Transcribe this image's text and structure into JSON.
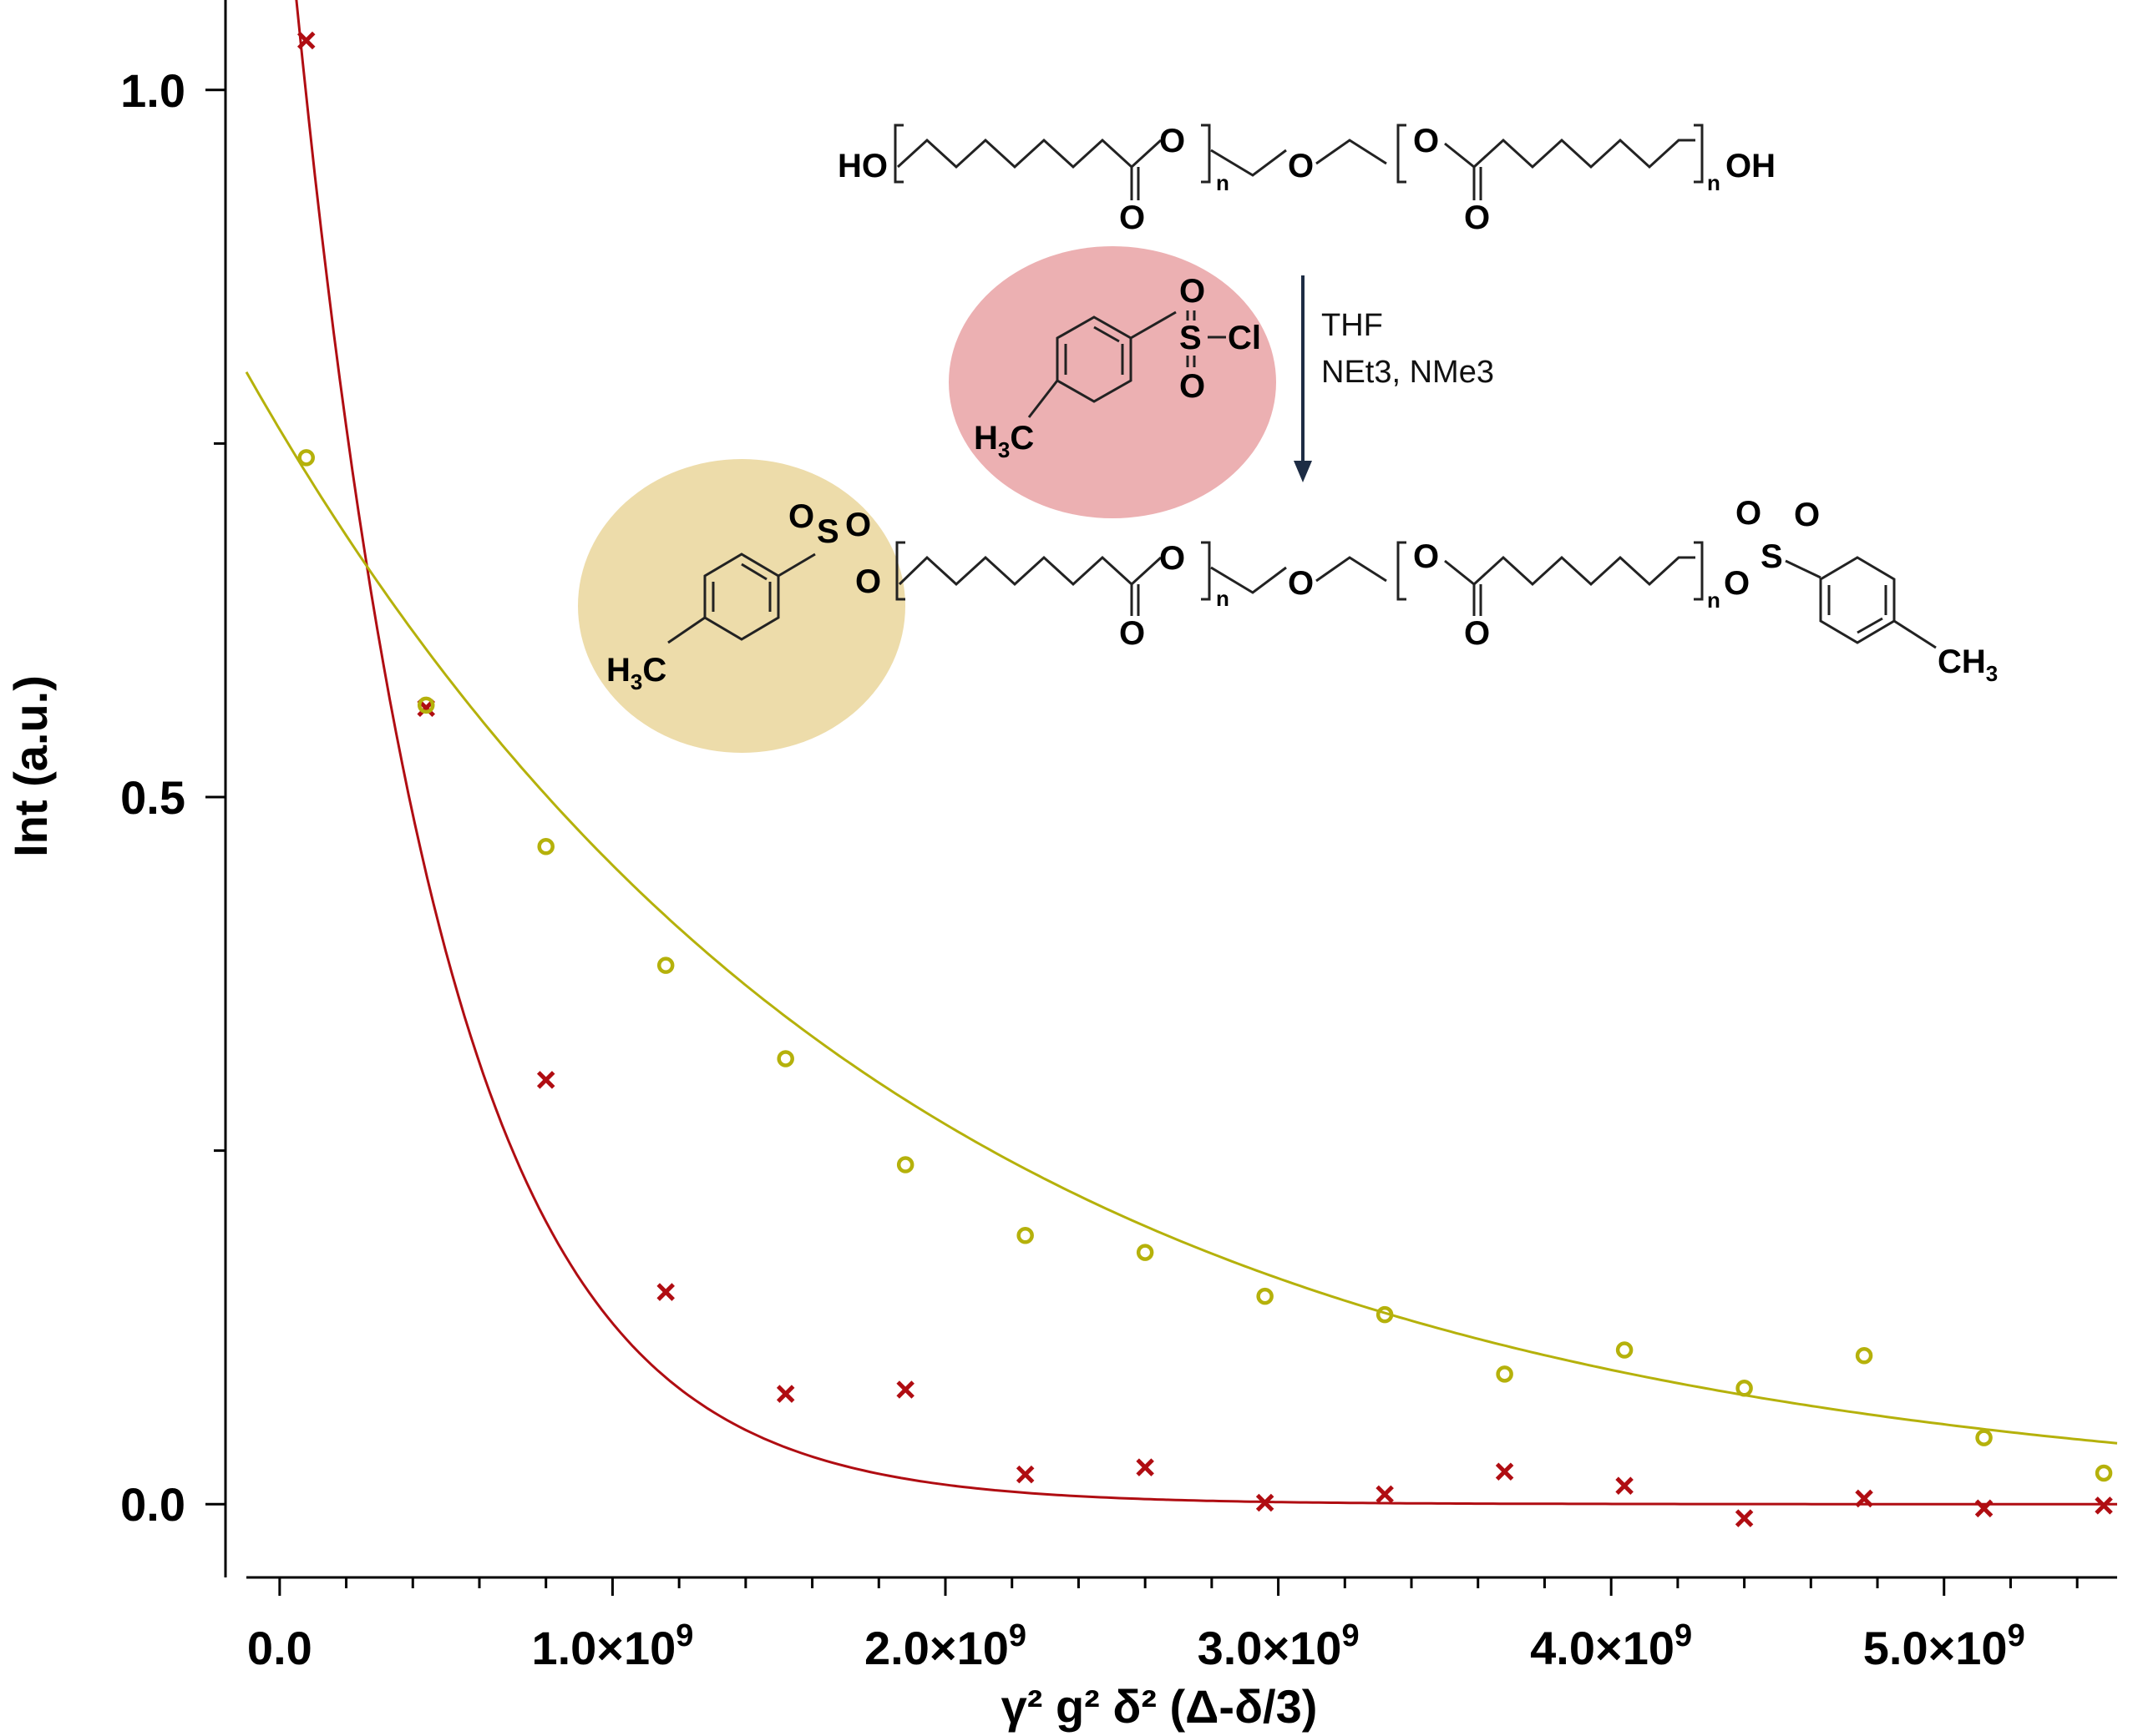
{
  "chart_data": {
    "type": "scatter",
    "xlabel": "γ² g² δ² (Δ-δ/3)",
    "ylabel": "Int (a.u.)",
    "xlim": [
      -100000000.0,
      5520000000.0
    ],
    "ylim": [
      -0.04,
      1.04
    ],
    "x_ticks": [
      {
        "value": 0,
        "label": "0.0",
        "exp": ""
      },
      {
        "value": 1000000000,
        "label": "1.0×10",
        "exp": "9"
      },
      {
        "value": 2000000000,
        "label": "2.0×10",
        "exp": "9"
      },
      {
        "value": 3000000000,
        "label": "3.0×10",
        "exp": "9"
      },
      {
        "value": 4000000000,
        "label": "4.0×10",
        "exp": "9"
      },
      {
        "value": 5000000000,
        "label": "5.0×10",
        "exp": "9"
      }
    ],
    "y_ticks": [
      {
        "value": 0,
        "label": "0.0"
      },
      {
        "value": 0.5,
        "label": "0.5"
      },
      {
        "value": 1.0,
        "label": "1.0"
      }
    ],
    "series": [
      {
        "marker": "x",
        "color": "#b00d12",
        "x": [
          80000000.0,
          440000000.0,
          800000000.0,
          1160000000.0,
          1520000000.0,
          1880000000.0,
          2240000000.0,
          2600000000.0,
          2960000000.0,
          3320000000.0,
          3680000000.0,
          4040000000.0,
          4400000000.0,
          4760000000.0,
          5120000000.0,
          5480000000.0
        ],
        "y": [
          1.035,
          0.563,
          0.3,
          0.15,
          0.078,
          0.081,
          0.021,
          0.026,
          0.001,
          0.007,
          0.023,
          0.013,
          -0.01,
          0.004,
          -0.003,
          -0.001
        ],
        "fit": {
          "model": "exponential",
          "A": 1.19,
          "k": 2.23e-09,
          "c": 0.0
        }
      },
      {
        "marker": "o",
        "color": "#b5b10b",
        "x": [
          80000000.0,
          440000000.0,
          800000000.0,
          1160000000.0,
          1520000000.0,
          1880000000.0,
          2240000000.0,
          2600000000.0,
          2960000000.0,
          3320000000.0,
          3680000000.0,
          4040000000.0,
          4400000000.0,
          4760000000.0,
          5120000000.0,
          5480000000.0
        ],
        "y": [
          0.74,
          0.565,
          0.465,
          0.381,
          0.315,
          0.24,
          0.19,
          0.178,
          0.147,
          0.134,
          0.092,
          0.109,
          0.082,
          0.105,
          0.047,
          0.022
        ],
        "fit": {
          "model": "exponential",
          "A": 0.76,
          "k": 5.2e-10,
          "c": 0.0
        }
      }
    ],
    "scheme": {
      "ho": "HO",
      "oh": "OH",
      "ring_o": "O",
      "carbonyl_o": "O",
      "ether_o": "O",
      "n": "n",
      "reagent_s": "S",
      "reagent_cl": "Cl",
      "h3c": "H",
      "h3c_sub": "3",
      "h3c_c": "C",
      "ch3": "CH",
      "ch3_sub": "3",
      "conditions": [
        "THF",
        "NEt3, NMe3"
      ],
      "colors": {
        "tosyl_chloride": "#ecb0b2",
        "tosylate": "#eddcaa",
        "arrow": "#1d2c44"
      }
    }
  }
}
